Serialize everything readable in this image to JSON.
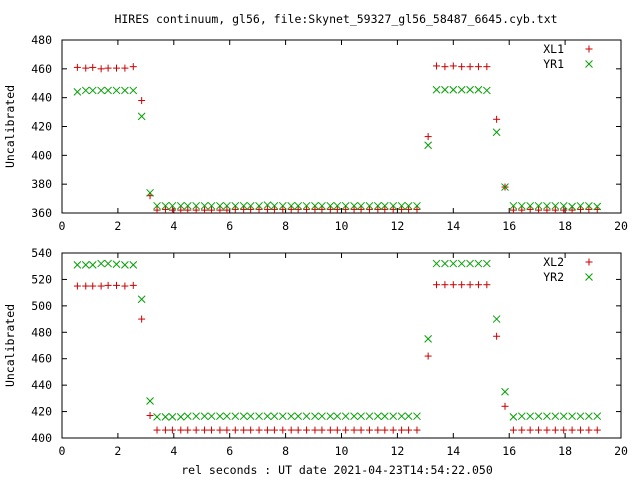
{
  "title": "HIRES continuum, gl56, file:Skynet_59327_gl56_58487_6645.cyb.txt",
  "xlabel": "rel seconds : UT date 2021-04-23T14:54:22.050",
  "colors": {
    "plus_series": "#cc0000",
    "cross_series": "#00a000",
    "axes": "#000000"
  },
  "chart_data": [
    {
      "type": "scatter",
      "title": "HIRES continuum, gl56, file:Skynet_59327_gl56_58487_6645.cyb.txt",
      "xlabel": "",
      "ylabel": "Uncalibrated",
      "xlim": [
        0,
        20
      ],
      "ylim": [
        360,
        480
      ],
      "xticks": [
        "0",
        "2",
        "4",
        "6",
        "8",
        "10",
        "12",
        "14",
        "16",
        "18",
        "20"
      ],
      "yticks": [
        "360",
        "380",
        "400",
        "420",
        "440",
        "460",
        "480"
      ],
      "grid": false,
      "legend_position": "top-right",
      "x": [
        0.55,
        0.85,
        1.1,
        1.4,
        1.65,
        1.95,
        2.25,
        2.55,
        2.85,
        3.15,
        3.4,
        3.7,
        3.95,
        4.25,
        4.5,
        4.8,
        5.1,
        5.35,
        5.65,
        5.9,
        6.2,
        6.5,
        6.75,
        7.05,
        7.35,
        7.6,
        7.9,
        8.2,
        8.45,
        8.75,
        9.05,
        9.3,
        9.6,
        9.85,
        10.15,
        10.45,
        10.7,
        11.0,
        11.3,
        11.55,
        11.85,
        12.15,
        12.4,
        12.7,
        13.1,
        13.4,
        13.7,
        14.0,
        14.3,
        14.6,
        14.9,
        15.2,
        15.55,
        15.85,
        16.15,
        16.45,
        16.75,
        17.05,
        17.35,
        17.65,
        17.95,
        18.25,
        18.55,
        18.85,
        19.15
      ],
      "series": [
        {
          "name": "XL1",
          "marker": "plus",
          "color": "#cc0000",
          "values": [
            461,
            460.5,
            461,
            460,
            460.5,
            460.5,
            460.5,
            461.5,
            438,
            372,
            362,
            362.5,
            362,
            362,
            362,
            362,
            362,
            362,
            362,
            362,
            362.5,
            362.5,
            362.5,
            362.5,
            362.5,
            362.5,
            362.5,
            362.5,
            362.5,
            362.5,
            362.5,
            362.5,
            362.5,
            362.5,
            362.5,
            362.5,
            362.5,
            362.5,
            362.5,
            362.5,
            362.5,
            362.5,
            362.5,
            362.5,
            413,
            462,
            461.5,
            462,
            461.5,
            461.5,
            461.5,
            461.5,
            425,
            378,
            362,
            362,
            362.5,
            362,
            362,
            362,
            362,
            362,
            362.5,
            362.5,
            362.5
          ]
        },
        {
          "name": "YR1",
          "marker": "cross",
          "color": "#00a000",
          "values": [
            444,
            445,
            445,
            445,
            445,
            445,
            445,
            445,
            427,
            374,
            365,
            365,
            365,
            365,
            365,
            365,
            365,
            365,
            365,
            365,
            365,
            365,
            365,
            365,
            365.5,
            365,
            365,
            365,
            365,
            365,
            365,
            365,
            365,
            365,
            365,
            365,
            365,
            365,
            365,
            365,
            365,
            365,
            365,
            365,
            407,
            445.5,
            445.5,
            445.5,
            445.5,
            445.5,
            445.5,
            445,
            416,
            378,
            365,
            365,
            365,
            365,
            365,
            365,
            365,
            364.5,
            365,
            365,
            364.5
          ]
        }
      ]
    },
    {
      "type": "scatter",
      "title": "",
      "xlabel": "rel seconds : UT date 2021-04-23T14:54:22.050",
      "ylabel": "Uncalibrated",
      "xlim": [
        0,
        20
      ],
      "ylim": [
        400,
        540
      ],
      "xticks": [
        "0",
        "2",
        "4",
        "6",
        "8",
        "10",
        "12",
        "14",
        "16",
        "18",
        "20"
      ],
      "yticks": [
        "400",
        "420",
        "440",
        "460",
        "480",
        "500",
        "520",
        "540"
      ],
      "grid": false,
      "legend_position": "top-right",
      "x": [
        0.55,
        0.85,
        1.1,
        1.4,
        1.65,
        1.95,
        2.25,
        2.55,
        2.85,
        3.15,
        3.4,
        3.7,
        3.95,
        4.25,
        4.5,
        4.8,
        5.1,
        5.35,
        5.65,
        5.9,
        6.2,
        6.5,
        6.75,
        7.05,
        7.35,
        7.6,
        7.9,
        8.2,
        8.45,
        8.75,
        9.05,
        9.3,
        9.6,
        9.85,
        10.15,
        10.45,
        10.7,
        11.0,
        11.3,
        11.55,
        11.85,
        12.15,
        12.4,
        12.7,
        13.1,
        13.4,
        13.7,
        14.0,
        14.3,
        14.6,
        14.9,
        15.2,
        15.55,
        15.85,
        16.15,
        16.45,
        16.75,
        17.05,
        17.35,
        17.65,
        17.95,
        18.25,
        18.55,
        18.85,
        19.15
      ],
      "series": [
        {
          "name": "XL2",
          "marker": "plus",
          "color": "#cc0000",
          "values": [
            515,
            515,
            515,
            515,
            515.5,
            515.5,
            515,
            515.5,
            490,
            417,
            406,
            406,
            406,
            406,
            406,
            406,
            406,
            406,
            406,
            406,
            406,
            406,
            406,
            406,
            406,
            406,
            406,
            406,
            406,
            406,
            406,
            406,
            406,
            406,
            406,
            406,
            406,
            406,
            406,
            406,
            406,
            406,
            406,
            406,
            462,
            516,
            516,
            516,
            516,
            516,
            516,
            516,
            477,
            424,
            406,
            406,
            406,
            406,
            406,
            406,
            406,
            406,
            406,
            406,
            406
          ]
        },
        {
          "name": "YR2",
          "marker": "cross",
          "color": "#00a000",
          "values": [
            531,
            531,
            531,
            532,
            532,
            531.5,
            531,
            531,
            505,
            428,
            416,
            416,
            416,
            416,
            416.5,
            416.5,
            416.5,
            416.5,
            416.5,
            416.5,
            416.5,
            416.5,
            416.5,
            416.5,
            416.5,
            416.5,
            416.5,
            416.5,
            416.5,
            416.5,
            416.5,
            416.5,
            416.5,
            416.5,
            416.5,
            416.5,
            416.5,
            416.5,
            416.5,
            416.5,
            416.5,
            416.5,
            416.5,
            416.5,
            475,
            532,
            532,
            532,
            532,
            532,
            532,
            532,
            490,
            435,
            416,
            416.5,
            416.5,
            416.5,
            416.5,
            416.5,
            416.5,
            416.5,
            416.5,
            416.5,
            416.5
          ]
        }
      ]
    }
  ]
}
